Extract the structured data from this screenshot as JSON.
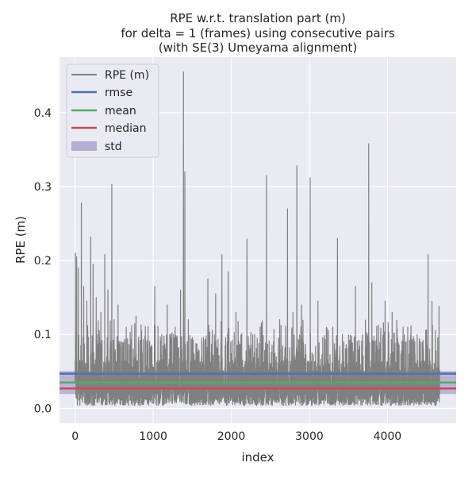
{
  "chart_data": {
    "type": "line",
    "title_lines": [
      "RPE w.r.t. translation part (m)",
      "for delta = 1 (frames) using consecutive pairs",
      "(with SE(3) Umeyama alignment)"
    ],
    "xlabel": "index",
    "ylabel": "RPE (m)",
    "xlim": [
      -200,
      4880
    ],
    "ylim": [
      -0.02,
      0.475
    ],
    "xticks": [
      0,
      1000,
      2000,
      3000,
      4000
    ],
    "yticks": [
      0.0,
      0.1,
      0.2,
      0.3,
      0.4
    ],
    "grid": true,
    "legend_placement": "top-left",
    "n_points": 4670,
    "stats": {
      "rmse": 0.047,
      "mean": 0.035,
      "median": 0.027,
      "std": 0.031
    },
    "series": [
      {
        "name": "RPE (m)",
        "color": "#808080",
        "peaks": [
          [
            5,
            0.21
          ],
          [
            20,
            0.205
          ],
          [
            40,
            0.19
          ],
          [
            80,
            0.278
          ],
          [
            110,
            0.165
          ],
          [
            150,
            0.145
          ],
          [
            200,
            0.232
          ],
          [
            230,
            0.195
          ],
          [
            270,
            0.15
          ],
          [
            330,
            0.13
          ],
          [
            380,
            0.208
          ],
          [
            420,
            0.16
          ],
          [
            470,
            0.303
          ],
          [
            500,
            0.12
          ],
          [
            550,
            0.14
          ],
          [
            600,
            0.09
          ],
          [
            700,
            0.085
          ],
          [
            780,
            0.125
          ],
          [
            900,
            0.09
          ],
          [
            1020,
            0.165
          ],
          [
            1110,
            0.1
          ],
          [
            1180,
            0.14
          ],
          [
            1260,
            0.1
          ],
          [
            1350,
            0.16
          ],
          [
            1388,
            0.455
          ],
          [
            1405,
            0.32
          ],
          [
            1450,
            0.12
          ],
          [
            1580,
            0.08
          ],
          [
            1700,
            0.175
          ],
          [
            1800,
            0.155
          ],
          [
            1880,
            0.208
          ],
          [
            1960,
            0.185
          ],
          [
            2060,
            0.13
          ],
          [
            2130,
            0.1
          ],
          [
            2200,
            0.229
          ],
          [
            2300,
            0.1
          ],
          [
            2370,
            0.11
          ],
          [
            2450,
            0.315
          ],
          [
            2540,
            0.09
          ],
          [
            2620,
            0.12
          ],
          [
            2720,
            0.27
          ],
          [
            2790,
            0.13
          ],
          [
            2840,
            0.328
          ],
          [
            2900,
            0.14
          ],
          [
            3010,
            0.312
          ],
          [
            3110,
            0.145
          ],
          [
            3200,
            0.09
          ],
          [
            3300,
            0.11
          ],
          [
            3360,
            0.23
          ],
          [
            3440,
            0.09
          ],
          [
            3590,
            0.165
          ],
          [
            3680,
            0.1
          ],
          [
            3760,
            0.358
          ],
          [
            3800,
            0.17
          ],
          [
            3900,
            0.08
          ],
          [
            3970,
            0.145
          ],
          [
            4060,
            0.13
          ],
          [
            4130,
            0.095
          ],
          [
            4200,
            0.11
          ],
          [
            4260,
            0.11
          ],
          [
            4350,
            0.09
          ],
          [
            4460,
            0.08
          ],
          [
            4520,
            0.208
          ],
          [
            4570,
            0.145
          ],
          [
            4660,
            0.138
          ]
        ]
      },
      {
        "name": "rmse",
        "color": "#4c72b0"
      },
      {
        "name": "mean",
        "color": "#55a868"
      },
      {
        "name": "median",
        "color": "#c44e52"
      },
      {
        "name": "std",
        "color": "#8172b2"
      }
    ]
  }
}
